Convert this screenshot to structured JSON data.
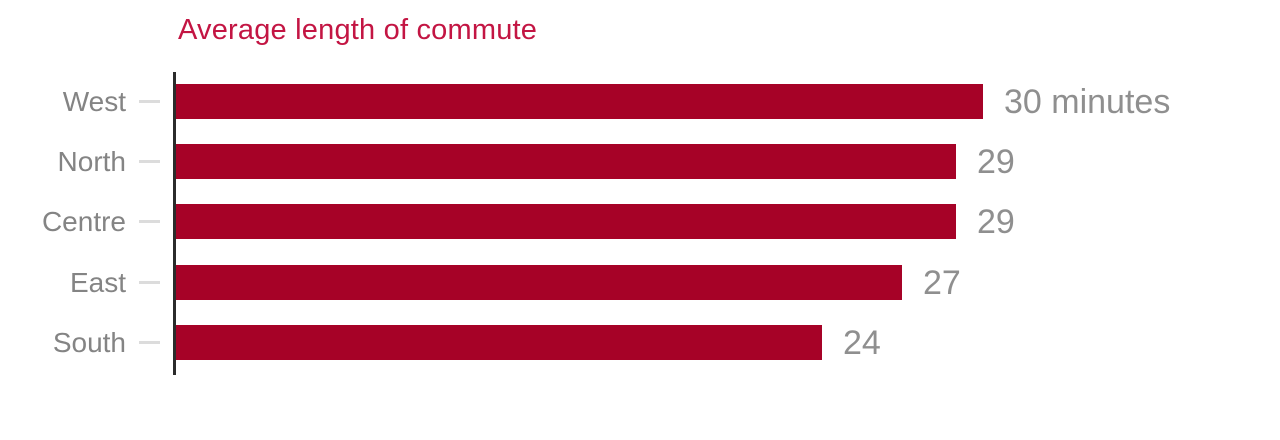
{
  "colors": {
    "bar": "#A60227",
    "title": "#C31543",
    "category_label": "#848484",
    "value_label": "#8F8F8F",
    "axis_line": "#2B2B2B",
    "tick": "#DCDCDC"
  },
  "chart_data": {
    "type": "bar",
    "orientation": "horizontal",
    "title": "Average length of commute",
    "categories": [
      "West",
      "North",
      "Centre",
      "East",
      "South"
    ],
    "values": [
      30,
      29,
      29,
      27,
      24
    ],
    "value_labels": [
      "30 minutes",
      "29",
      "29",
      "27",
      "24"
    ],
    "unit": "minutes",
    "xlabel": "",
    "ylabel": "",
    "xlim": [
      0,
      30
    ],
    "grid": false,
    "legend": false
  }
}
